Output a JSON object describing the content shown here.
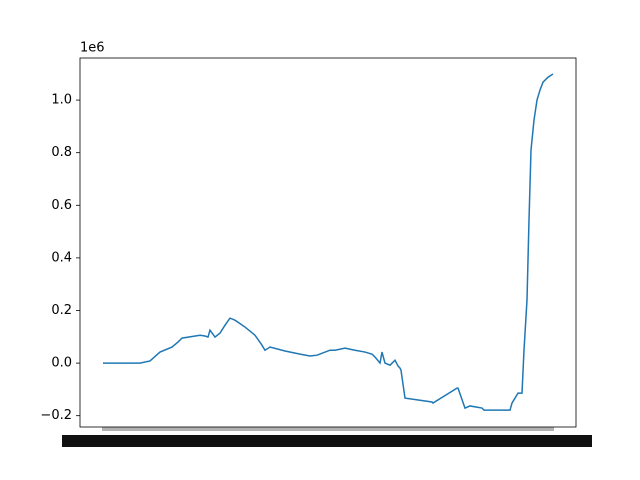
{
  "chart_data": {
    "type": "line",
    "offset_label": "1e6",
    "x": [
      0,
      37,
      47,
      57,
      69,
      75,
      79,
      97,
      102,
      105,
      107,
      112,
      117,
      122,
      127,
      132,
      142,
      152,
      159,
      162,
      167,
      182,
      197,
      207,
      214,
      227,
      232,
      242,
      252,
      262,
      269,
      272,
      277,
      279,
      282,
      287,
      292,
      295,
      297,
      298,
      302,
      329,
      330,
      354,
      355,
      362,
      367,
      379,
      381,
      407,
      409,
      415,
      419,
      421,
      424,
      426,
      428,
      431,
      434,
      437,
      440,
      445,
      450
    ],
    "series": [
      {
        "color": "#1f77b4",
        "values": [
          0,
          0,
          0.008,
          0.042,
          0.061,
          0.08,
          0.095,
          0.106,
          0.103,
          0.099,
          0.125,
          0.099,
          0.114,
          0.144,
          0.171,
          0.163,
          0.137,
          0.106,
          0.068,
          0.049,
          0.061,
          0.046,
          0.034,
          0.027,
          0.03,
          0.049,
          0.049,
          0.057,
          0.049,
          0.042,
          0.034,
          0.023,
          0,
          0.042,
          0,
          -0.008,
          0.011,
          -0.011,
          -0.019,
          -0.027,
          -0.133,
          -0.148,
          -0.152,
          -0.095,
          -0.095,
          -0.171,
          -0.163,
          -0.171,
          -0.179,
          -0.179,
          -0.152,
          -0.114,
          -0.114,
          0.049,
          0.24,
          0.544,
          0.81,
          0.924,
          1.0,
          1.038,
          1.068,
          1.087,
          1.099
        ]
      }
    ],
    "xlim": [
      -23,
      473
    ],
    "ylim": [
      -0.243,
      1.16
    ],
    "yticks": [
      {
        "value": -0.2,
        "label": "−0.2"
      },
      {
        "value": 0,
        "label": "0.0"
      },
      0.2,
      0.4,
      0.6,
      0.8,
      {
        "value": 1.0,
        "label": "1.0"
      }
    ]
  }
}
